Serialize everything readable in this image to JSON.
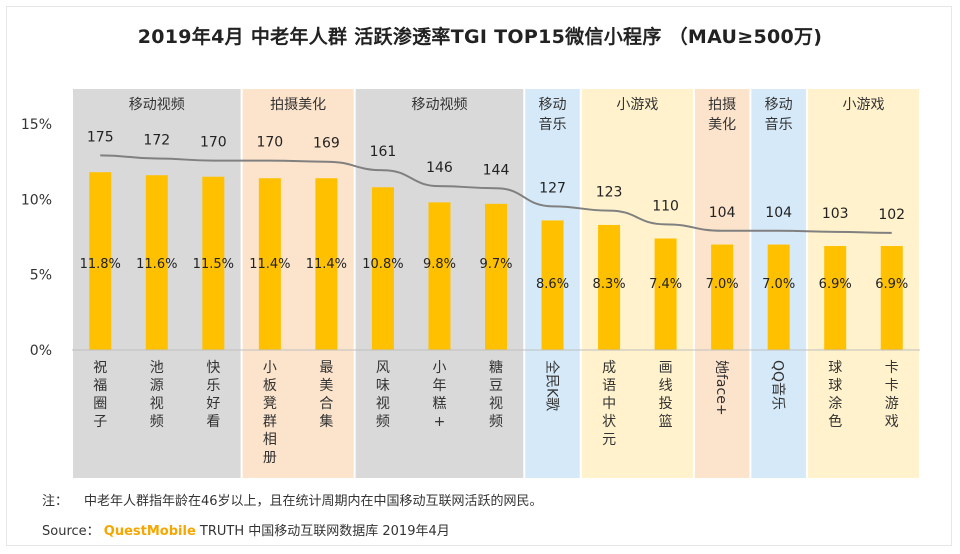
{
  "title": "2019年4月 中老年人群 活跃渗透率TGI TOP15微信小程序 （MAU≥500万)",
  "note": {
    "label": "注：",
    "text": "中老年人群指年龄在46岁以上，且在统计周期内在中国移动互联网活跃的网民。"
  },
  "source": {
    "label": "Source：",
    "brand": "QuestMobile",
    "text": "TRUTH 中国移动互联网数据库 2019年4月"
  },
  "colors": {
    "bar": "#FFC000",
    "line": "#808080",
    "band_gray": "#D9D9D9",
    "band_orange": "#FCE4CC",
    "band_blue": "#D6E9F8",
    "band_yellow": "#FFF2CC"
  },
  "chart_data": {
    "type": "bar",
    "categories": [
      "祝福圈子",
      "池源视频",
      "快乐好看",
      "小板凳群相册",
      "最美合集",
      "风味视频",
      "小年糕+",
      "糖豆视频",
      "全民K歌",
      "成语中状元",
      "画线投篮",
      "她face+",
      "QQ音乐",
      "球球涂色",
      "卡卡游戏"
    ],
    "series": [
      {
        "values": [
          11.8,
          11.6,
          11.5,
          11.4,
          11.4,
          10.8,
          9.8,
          9.7,
          8.6,
          8.3,
          7.4,
          7.0,
          7.0,
          6.9,
          6.9
        ],
        "value_labels": [
          "11.8%",
          "11.6%",
          "11.5%",
          "11.4%",
          "11.4%",
          "10.8%",
          "9.8%",
          "9.7%",
          "8.6%",
          "8.3%",
          "7.4%",
          "7.0%",
          "7.0%",
          "6.9%",
          "6.9%"
        ]
      },
      {
        "values": [
          175,
          172,
          170,
          170,
          169,
          161,
          146,
          144,
          127,
          123,
          110,
          104,
          104,
          103,
          102
        ]
      }
    ],
    "groups": [
      {
        "label": "移动视频",
        "start": 0,
        "end": 2,
        "color": "band_gray"
      },
      {
        "label": "拍摄美化",
        "start": 3,
        "end": 4,
        "color": "band_orange"
      },
      {
        "label": "移动视频",
        "start": 5,
        "end": 7,
        "color": "band_gray"
      },
      {
        "label": "移动音乐",
        "start": 8,
        "end": 8,
        "color": "band_blue"
      },
      {
        "label": "小游戏",
        "start": 9,
        "end": 10,
        "color": "band_yellow"
      },
      {
        "label": "拍摄美化",
        "start": 11,
        "end": 11,
        "color": "band_orange"
      },
      {
        "label": "移动音乐",
        "start": 12,
        "end": 12,
        "color": "band_blue"
      },
      {
        "label": "小游戏",
        "start": 13,
        "end": 14,
        "color": "band_yellow"
      }
    ],
    "yticks": [
      "0%",
      "5%",
      "10%",
      "15%"
    ],
    "ylim": [
      0,
      15
    ],
    "grid": false,
    "legend": "none"
  }
}
